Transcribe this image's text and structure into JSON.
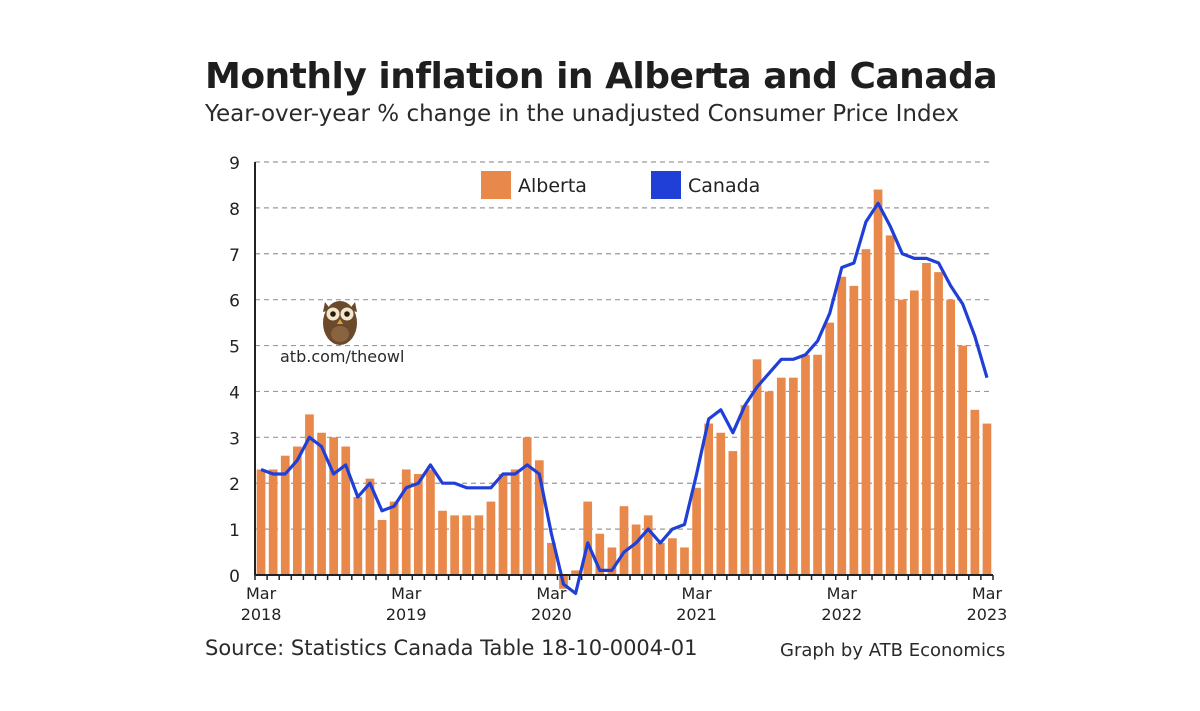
{
  "title": "Monthly inflation in Alberta and Canada",
  "subtitle": "Year-over-year % change in the unadjusted Consumer Price Index",
  "source": "Source: Statistics Canada Table 18-10-0004-01",
  "credit": "Graph by ATB Economics",
  "watermark": {
    "text": "atb.com/theowl",
    "icon": "owl-icon"
  },
  "colors": {
    "alberta": "#E8894B",
    "canada": "#1F3FD6",
    "grid": "#9a9a9a",
    "axis": "#222222"
  },
  "chart_data": {
    "type": "bar",
    "ylim": [
      0,
      9
    ],
    "yticks": [
      "0",
      "1",
      "2",
      "3",
      "4",
      "5",
      "6",
      "7",
      "8",
      "9"
    ],
    "xticks": [
      {
        "index": 0,
        "month": "Mar",
        "year": "2018"
      },
      {
        "index": 12,
        "month": "Mar",
        "year": "2019"
      },
      {
        "index": 24,
        "month": "Mar",
        "year": "2020"
      },
      {
        "index": 36,
        "month": "Mar",
        "year": "2021"
      },
      {
        "index": 48,
        "month": "Mar",
        "year": "2022"
      },
      {
        "index": 60,
        "month": "Mar",
        "year": "2023"
      }
    ],
    "series": [
      {
        "name": "Alberta",
        "type": "bar",
        "values": [
          2.3,
          2.3,
          2.6,
          2.8,
          3.5,
          3.1,
          3.0,
          2.8,
          1.7,
          2.1,
          1.2,
          1.6,
          2.3,
          2.2,
          2.3,
          1.4,
          1.3,
          1.3,
          1.3,
          1.6,
          2.2,
          2.3,
          3.0,
          2.5,
          0.7,
          -0.3,
          0.1,
          1.6,
          0.9,
          0.6,
          1.5,
          1.1,
          1.3,
          0.7,
          0.8,
          0.6,
          1.9,
          3.3,
          3.1,
          2.7,
          3.7,
          4.7,
          4.0,
          4.3,
          4.3,
          4.8,
          4.8,
          5.5,
          6.5,
          6.3,
          7.1,
          8.4,
          7.4,
          6.0,
          6.2,
          6.8,
          6.6,
          6.0,
          5.0,
          3.6,
          3.3
        ]
      },
      {
        "name": "Canada",
        "type": "line",
        "values": [
          2.3,
          2.2,
          2.2,
          2.5,
          3.0,
          2.8,
          2.2,
          2.4,
          1.7,
          2.0,
          1.4,
          1.5,
          1.9,
          2.0,
          2.4,
          2.0,
          2.0,
          1.9,
          1.9,
          1.9,
          2.2,
          2.2,
          2.4,
          2.2,
          0.9,
          -0.2,
          -0.4,
          0.7,
          0.1,
          0.1,
          0.5,
          0.7,
          1.0,
          0.7,
          1.0,
          1.1,
          2.2,
          3.4,
          3.6,
          3.1,
          3.7,
          4.1,
          4.4,
          4.7,
          4.7,
          4.8,
          5.1,
          5.7,
          6.7,
          6.8,
          7.7,
          8.1,
          7.6,
          7.0,
          6.9,
          6.9,
          6.8,
          6.3,
          5.9,
          5.2,
          4.3
        ]
      }
    ]
  }
}
